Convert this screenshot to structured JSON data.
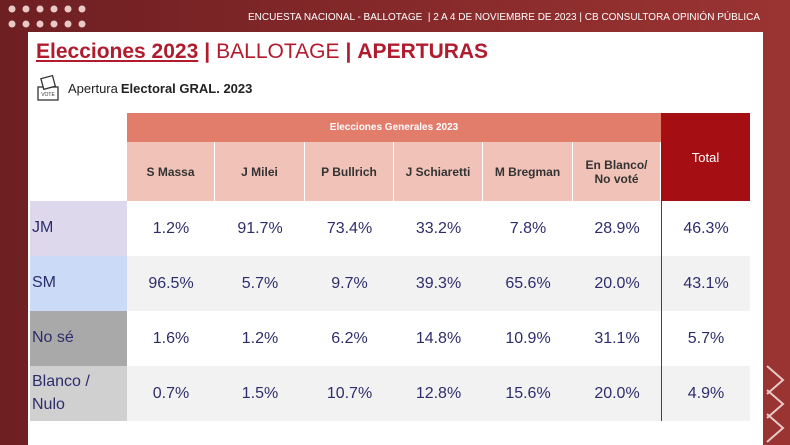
{
  "header": {
    "text": "ENCUESTA NACIONAL - BALLOTAGE  | 2 A 4 DE NOVIEMBRE DE 2023 | CB CONSULTORA OPINIÓN PÚBLICA"
  },
  "title": {
    "main": "Elecciones 2023",
    "separator1": "|",
    "middle": "BALLOTAGE",
    "separator2": "|",
    "highlight": "APERTURAS"
  },
  "subtitle": {
    "icon_label": "VOTE",
    "prefix": "Apertura",
    "emphasis": "Electoral GRAL. 2023"
  },
  "table": {
    "group_header": "Elecciones Generales 2023",
    "columns": [
      "S Massa",
      "J Milei",
      "P Bullrich",
      "J Schiaretti",
      "M Bregman",
      "En Blanco/ No voté"
    ],
    "total_header": "Total",
    "rows": [
      {
        "label": "JM",
        "cells": [
          "1.2%",
          "91.7%",
          "73.4%",
          "33.2%",
          "7.8%",
          "28.9%"
        ],
        "total": "46.3%"
      },
      {
        "label": "SM",
        "cells": [
          "96.5%",
          "5.7%",
          "9.7%",
          "39.3%",
          "65.6%",
          "20.0%"
        ],
        "total": "43.1%"
      },
      {
        "label": "No sé",
        "cells": [
          "1.6%",
          "1.2%",
          "6.2%",
          "14.8%",
          "10.9%",
          "31.1%"
        ],
        "total": "5.7%"
      },
      {
        "label": "Blanco / Nulo",
        "cells": [
          "0.7%",
          "1.5%",
          "10.7%",
          "12.8%",
          "15.6%",
          "20.0%"
        ],
        "total": "4.9%"
      }
    ]
  }
}
